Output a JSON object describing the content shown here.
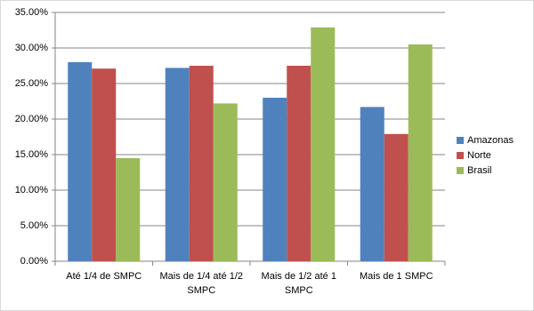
{
  "chart_data": {
    "type": "bar",
    "categories": [
      "Até 1/4 de SMPC",
      "Mais de 1/4 até 1/2 SMPC",
      "Mais de 1/2 até 1 SMPC",
      "Mais de 1 SMPC"
    ],
    "series": [
      {
        "name": "Amazonas",
        "color": "#4f81bd",
        "values": [
          28.0,
          27.2,
          23.0,
          21.7
        ]
      },
      {
        "name": "Norte",
        "color": "#c0504d",
        "values": [
          27.1,
          27.5,
          27.5,
          17.9
        ]
      },
      {
        "name": "Brasil",
        "color": "#9bbb59",
        "values": [
          14.5,
          22.2,
          32.9,
          30.5
        ]
      }
    ],
    "ylim": [
      0,
      35
    ],
    "yticks": [
      {
        "value": 0,
        "label": "0.00%"
      },
      {
        "value": 5,
        "label": "5.00%"
      },
      {
        "value": 10,
        "label": "10.00%"
      },
      {
        "value": 15,
        "label": "15.00%"
      },
      {
        "value": 20,
        "label": "20.00%"
      },
      {
        "value": 25,
        "label": "25.00%"
      },
      {
        "value": 30,
        "label": "30.00%"
      },
      {
        "value": 35,
        "label": "35.00%"
      }
    ],
    "grid": true,
    "legend": "right"
  }
}
